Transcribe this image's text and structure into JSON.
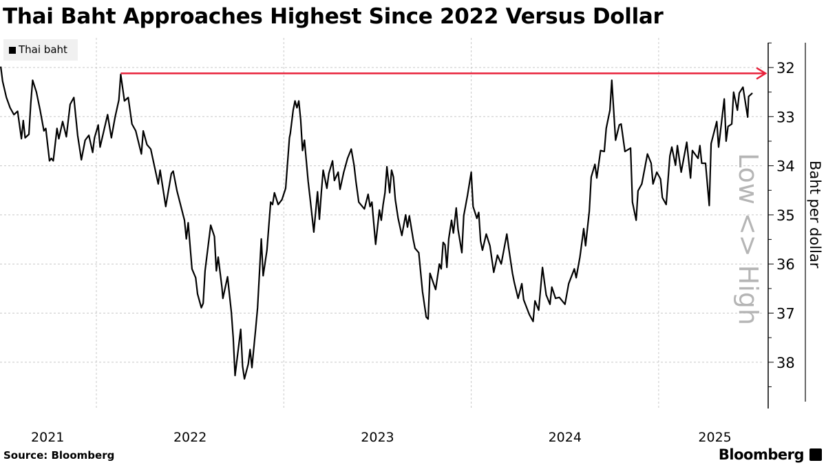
{
  "chart_data": {
    "type": "line",
    "title": "Thai Baht Approaches Highest Since 2022 Versus Dollar",
    "xlabel": "",
    "ylabel": "Baht per dollar",
    "y_inverted_note": "Low <> High",
    "ylim": [
      31.5,
      38.9
    ],
    "y_inverted": true,
    "yticks": [
      32,
      33,
      34,
      35,
      36,
      37,
      38
    ],
    "xlim": [
      2021.486,
      2025.62
    ],
    "xticks": [
      {
        "label": "2021",
        "t": 2021.74
      },
      {
        "label": "2022",
        "t": 2022.5
      },
      {
        "label": "2023",
        "t": 2023.5
      },
      {
        "label": "2024",
        "t": 2024.5
      },
      {
        "label": "2025",
        "t": 2025.3
      }
    ],
    "x_gridlines": [
      2022,
      2023,
      2024,
      2025
    ],
    "grid": true,
    "legend": {
      "position": "top-left",
      "entries": [
        "Thai baht"
      ]
    },
    "annotation": {
      "type": "arrow",
      "value": 32.12,
      "from": 2022.13,
      "to": 2025.57,
      "color": "#e8213a"
    },
    "series": [
      {
        "name": "Thai baht",
        "color": "#000000",
        "points": [
          [
            2021.49,
            31.98
          ],
          [
            2021.5,
            32.28
          ],
          [
            2021.52,
            32.61
          ],
          [
            2021.54,
            32.82
          ],
          [
            2021.56,
            32.96
          ],
          [
            2021.58,
            32.89
          ],
          [
            2021.6,
            33.45
          ],
          [
            2021.61,
            33.08
          ],
          [
            2021.62,
            33.43
          ],
          [
            2021.64,
            33.36
          ],
          [
            2021.65,
            32.73
          ],
          [
            2021.66,
            32.26
          ],
          [
            2021.68,
            32.5
          ],
          [
            2021.7,
            32.87
          ],
          [
            2021.72,
            33.29
          ],
          [
            2021.73,
            33.24
          ],
          [
            2021.75,
            33.9
          ],
          [
            2021.76,
            33.85
          ],
          [
            2021.77,
            33.9
          ],
          [
            2021.79,
            33.24
          ],
          [
            2021.8,
            33.45
          ],
          [
            2021.82,
            33.1
          ],
          [
            2021.84,
            33.41
          ],
          [
            2021.86,
            32.75
          ],
          [
            2021.88,
            32.61
          ],
          [
            2021.9,
            33.38
          ],
          [
            2021.92,
            33.88
          ],
          [
            2021.94,
            33.48
          ],
          [
            2021.96,
            33.38
          ],
          [
            2021.98,
            33.73
          ],
          [
            2021.99,
            33.43
          ],
          [
            2022.01,
            33.17
          ],
          [
            2022.02,
            33.62
          ],
          [
            2022.06,
            32.96
          ],
          [
            2022.08,
            33.43
          ],
          [
            2022.1,
            33.01
          ],
          [
            2022.12,
            32.66
          ],
          [
            2022.13,
            32.14
          ],
          [
            2022.15,
            32.68
          ],
          [
            2022.17,
            32.61
          ],
          [
            2022.19,
            33.15
          ],
          [
            2022.21,
            33.29
          ],
          [
            2022.24,
            33.76
          ],
          [
            2022.25,
            33.29
          ],
          [
            2022.27,
            33.57
          ],
          [
            2022.29,
            33.66
          ],
          [
            2022.33,
            34.37
          ],
          [
            2022.34,
            34.09
          ],
          [
            2022.37,
            34.83
          ],
          [
            2022.4,
            34.16
          ],
          [
            2022.41,
            34.11
          ],
          [
            2022.43,
            34.51
          ],
          [
            2022.47,
            35.11
          ],
          [
            2022.48,
            35.49
          ],
          [
            2022.49,
            35.16
          ],
          [
            2022.51,
            36.1
          ],
          [
            2022.53,
            36.28
          ],
          [
            2022.54,
            36.61
          ],
          [
            2022.56,
            36.89
          ],
          [
            2022.57,
            36.8
          ],
          [
            2022.58,
            36.14
          ],
          [
            2022.61,
            35.21
          ],
          [
            2022.63,
            35.44
          ],
          [
            2022.64,
            36.14
          ],
          [
            2022.65,
            35.86
          ],
          [
            2022.67,
            36.47
          ],
          [
            2022.675,
            36.7
          ],
          [
            2022.7,
            36.26
          ],
          [
            2022.72,
            36.98
          ],
          [
            2022.73,
            37.5
          ],
          [
            2022.74,
            38.27
          ],
          [
            2022.77,
            37.33
          ],
          [
            2022.78,
            38.08
          ],
          [
            2022.79,
            38.34
          ],
          [
            2022.81,
            38.04
          ],
          [
            2022.82,
            37.74
          ],
          [
            2022.83,
            38.11
          ],
          [
            2022.85,
            37.31
          ],
          [
            2022.86,
            36.89
          ],
          [
            2022.88,
            35.49
          ],
          [
            2022.89,
            36.24
          ],
          [
            2022.91,
            35.72
          ],
          [
            2022.93,
            34.74
          ],
          [
            2022.94,
            34.79
          ],
          [
            2022.95,
            34.55
          ],
          [
            2022.97,
            34.79
          ],
          [
            2022.99,
            34.69
          ],
          [
            2023.01,
            34.46
          ],
          [
            2023.03,
            33.43
          ],
          [
            2023.035,
            33.34
          ],
          [
            2023.05,
            32.87
          ],
          [
            2023.06,
            32.68
          ],
          [
            2023.07,
            32.82
          ],
          [
            2023.08,
            32.68
          ],
          [
            2023.09,
            33.06
          ],
          [
            2023.1,
            33.69
          ],
          [
            2023.11,
            33.48
          ],
          [
            2023.13,
            34.32
          ],
          [
            2023.14,
            34.65
          ],
          [
            2023.16,
            35.35
          ],
          [
            2023.18,
            34.53
          ],
          [
            2023.19,
            35.09
          ],
          [
            2023.2,
            34.55
          ],
          [
            2023.21,
            34.09
          ],
          [
            2023.23,
            34.46
          ],
          [
            2023.24,
            34.16
          ],
          [
            2023.26,
            33.9
          ],
          [
            2023.27,
            34.3
          ],
          [
            2023.29,
            34.13
          ],
          [
            2023.3,
            34.48
          ],
          [
            2023.32,
            34.13
          ],
          [
            2023.34,
            33.85
          ],
          [
            2023.36,
            33.66
          ],
          [
            2023.375,
            33.99
          ],
          [
            2023.385,
            34.32
          ],
          [
            2023.4,
            34.74
          ],
          [
            2023.43,
            34.88
          ],
          [
            2023.45,
            34.58
          ],
          [
            2023.46,
            34.83
          ],
          [
            2023.47,
            34.74
          ],
          [
            2023.49,
            35.6
          ],
          [
            2023.51,
            34.9
          ],
          [
            2023.52,
            35.11
          ],
          [
            2023.53,
            34.79
          ],
          [
            2023.54,
            34.55
          ],
          [
            2023.55,
            34.02
          ],
          [
            2023.565,
            34.55
          ],
          [
            2023.575,
            34.09
          ],
          [
            2023.585,
            34.23
          ],
          [
            2023.595,
            34.69
          ],
          [
            2023.61,
            35.07
          ],
          [
            2023.63,
            35.42
          ],
          [
            2023.65,
            35.0
          ],
          [
            2023.66,
            35.25
          ],
          [
            2023.67,
            35.02
          ],
          [
            2023.69,
            35.49
          ],
          [
            2023.7,
            35.68
          ],
          [
            2023.72,
            35.77
          ],
          [
            2023.74,
            36.56
          ],
          [
            2023.76,
            37.08
          ],
          [
            2023.77,
            37.12
          ],
          [
            2023.78,
            36.19
          ],
          [
            2023.81,
            36.52
          ],
          [
            2023.83,
            36.0
          ],
          [
            2023.84,
            36.1
          ],
          [
            2023.85,
            35.56
          ],
          [
            2023.86,
            35.61
          ],
          [
            2023.87,
            36.07
          ],
          [
            2023.88,
            35.49
          ],
          [
            2023.895,
            35.11
          ],
          [
            2023.905,
            35.37
          ],
          [
            2023.92,
            34.86
          ],
          [
            2023.93,
            35.3
          ],
          [
            2023.95,
            35.77
          ],
          [
            2023.96,
            35.02
          ],
          [
            2023.98,
            34.6
          ],
          [
            2024.0,
            34.13
          ],
          [
            2024.01,
            34.83
          ],
          [
            2024.03,
            35.07
          ],
          [
            2024.04,
            34.95
          ],
          [
            2024.05,
            35.53
          ],
          [
            2024.06,
            35.72
          ],
          [
            2024.08,
            35.39
          ],
          [
            2024.1,
            35.63
          ],
          [
            2024.12,
            36.17
          ],
          [
            2024.14,
            35.82
          ],
          [
            2024.16,
            36.0
          ],
          [
            2024.19,
            35.39
          ],
          [
            2024.2,
            35.68
          ],
          [
            2024.22,
            36.19
          ],
          [
            2024.23,
            36.38
          ],
          [
            2024.25,
            36.7
          ],
          [
            2024.27,
            36.4
          ],
          [
            2024.28,
            36.73
          ],
          [
            2024.31,
            37.03
          ],
          [
            2024.33,
            37.17
          ],
          [
            2024.34,
            36.75
          ],
          [
            2024.36,
            36.94
          ],
          [
            2024.38,
            36.07
          ],
          [
            2024.4,
            36.63
          ],
          [
            2024.42,
            36.82
          ],
          [
            2024.43,
            36.47
          ],
          [
            2024.45,
            36.7
          ],
          [
            2024.47,
            36.68
          ],
          [
            2024.5,
            36.82
          ],
          [
            2024.52,
            36.4
          ],
          [
            2024.55,
            36.1
          ],
          [
            2024.56,
            36.28
          ],
          [
            2024.58,
            35.86
          ],
          [
            2024.6,
            35.28
          ],
          [
            2024.61,
            35.63
          ],
          [
            2024.63,
            34.93
          ],
          [
            2024.64,
            34.23
          ],
          [
            2024.66,
            33.97
          ],
          [
            2024.67,
            34.25
          ],
          [
            2024.69,
            33.69
          ],
          [
            2024.71,
            33.71
          ],
          [
            2024.72,
            33.24
          ],
          [
            2024.74,
            32.87
          ],
          [
            2024.75,
            32.26
          ],
          [
            2024.77,
            33.48
          ],
          [
            2024.79,
            33.17
          ],
          [
            2024.8,
            33.15
          ],
          [
            2024.82,
            33.71
          ],
          [
            2024.85,
            33.64
          ],
          [
            2024.86,
            34.74
          ],
          [
            2024.88,
            35.11
          ],
          [
            2024.89,
            34.51
          ],
          [
            2024.91,
            34.37
          ],
          [
            2024.94,
            33.76
          ],
          [
            2024.96,
            33.95
          ],
          [
            2024.97,
            34.37
          ],
          [
            2024.99,
            34.13
          ],
          [
            2025.01,
            34.27
          ],
          [
            2025.02,
            34.65
          ],
          [
            2025.04,
            34.79
          ],
          [
            2025.06,
            33.8
          ],
          [
            2025.07,
            33.62
          ],
          [
            2025.09,
            33.99
          ],
          [
            2025.1,
            33.59
          ],
          [
            2025.12,
            34.13
          ],
          [
            2025.15,
            33.52
          ],
          [
            2025.17,
            34.25
          ],
          [
            2025.18,
            33.69
          ],
          [
            2025.21,
            33.85
          ],
          [
            2025.22,
            33.59
          ],
          [
            2025.23,
            33.95
          ],
          [
            2025.25,
            33.95
          ],
          [
            2025.27,
            34.81
          ],
          [
            2025.28,
            33.55
          ],
          [
            2025.31,
            33.1
          ],
          [
            2025.32,
            33.62
          ],
          [
            2025.35,
            32.64
          ],
          [
            2025.36,
            33.5
          ],
          [
            2025.37,
            33.2
          ],
          [
            2025.39,
            33.15
          ],
          [
            2025.4,
            32.5
          ],
          [
            2025.42,
            32.87
          ],
          [
            2025.43,
            32.52
          ],
          [
            2025.45,
            32.4
          ],
          [
            2025.475,
            33.01
          ],
          [
            2025.48,
            32.59
          ],
          [
            2025.5,
            32.52
          ]
        ]
      }
    ]
  },
  "footer": {
    "source": "Source: Bloomberg",
    "brand": "Bloomberg"
  }
}
